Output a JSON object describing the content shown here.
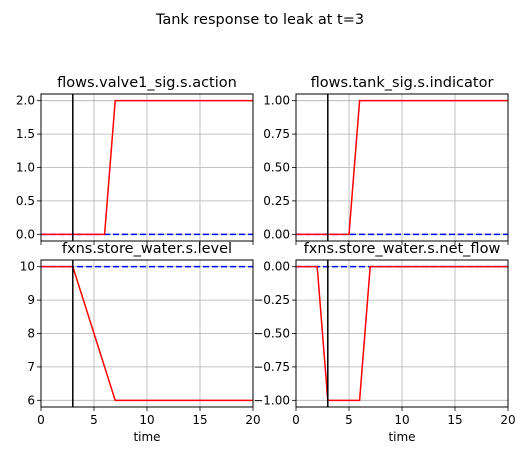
{
  "figure": {
    "suptitle": "Tank response to leak at t=3"
  },
  "colors": {
    "faulty": "#ff0000",
    "nominal": "#0000ff",
    "event": "#000000"
  },
  "chart_data": [
    {
      "type": "line",
      "title": "flows.valve1_sig.s.action",
      "xlabel": "",
      "xlim": [
        0,
        20
      ],
      "ylim": [
        -0.1,
        2.1
      ],
      "xticks": [
        0,
        5,
        10,
        15,
        20
      ],
      "yticks": [
        0.0,
        0.5,
        1.0,
        1.5,
        2.0
      ],
      "ytick_labels": [
        "0.0",
        "0.5",
        "1.0",
        "1.5",
        "2.0"
      ],
      "show_xtick_labels": false,
      "grid": true,
      "event_x": 3,
      "series": [
        {
          "style": "solid",
          "color": "#ff0000",
          "x": [
            0,
            6,
            7,
            20
          ],
          "y": [
            0,
            0,
            2,
            2
          ]
        },
        {
          "style": "dashed",
          "color": "#0000ff",
          "x": [
            0,
            20
          ],
          "y": [
            0,
            0
          ]
        }
      ]
    },
    {
      "type": "line",
      "title": "flows.tank_sig.s.indicator",
      "xlabel": "",
      "xlim": [
        0,
        20
      ],
      "ylim": [
        -0.05,
        1.05
      ],
      "xticks": [
        0,
        5,
        10,
        15,
        20
      ],
      "yticks": [
        0.0,
        0.25,
        0.5,
        0.75,
        1.0
      ],
      "ytick_labels": [
        "0.00",
        "0.25",
        "0.50",
        "0.75",
        "1.00"
      ],
      "show_xtick_labels": false,
      "grid": true,
      "event_x": 3,
      "series": [
        {
          "style": "solid",
          "color": "#ff0000",
          "x": [
            0,
            5,
            6,
            20
          ],
          "y": [
            0,
            0,
            1,
            1
          ]
        },
        {
          "style": "dashed",
          "color": "#0000ff",
          "x": [
            0,
            20
          ],
          "y": [
            0,
            0
          ]
        }
      ]
    },
    {
      "type": "line",
      "title": "fxns.store_water.s.level",
      "xlabel": "time",
      "xlim": [
        0,
        20
      ],
      "ylim": [
        5.8,
        10.2
      ],
      "xticks": [
        0,
        5,
        10,
        15,
        20
      ],
      "xtick_labels": [
        "0",
        "5",
        "10",
        "15",
        "20"
      ],
      "yticks": [
        6,
        7,
        8,
        9,
        10
      ],
      "ytick_labels": [
        "6",
        "7",
        "8",
        "9",
        "10"
      ],
      "show_xtick_labels": true,
      "grid": true,
      "event_x": 3,
      "series": [
        {
          "style": "solid",
          "color": "#ff0000",
          "x": [
            0,
            3,
            7,
            20
          ],
          "y": [
            10,
            10,
            6,
            6
          ]
        },
        {
          "style": "dashed",
          "color": "#0000ff",
          "x": [
            0,
            20
          ],
          "y": [
            10,
            10
          ]
        }
      ]
    },
    {
      "type": "line",
      "title": "fxns.store_water.s.net_flow",
      "xlabel": "time",
      "xlim": [
        0,
        20
      ],
      "ylim": [
        -1.05,
        0.05
      ],
      "xticks": [
        0,
        5,
        10,
        15,
        20
      ],
      "xtick_labels": [
        "0",
        "5",
        "10",
        "15",
        "20"
      ],
      "yticks": [
        0.0,
        -0.25,
        -0.5,
        -0.75,
        -1.0
      ],
      "ytick_labels": [
        "0.00",
        "−0.25",
        "−0.50",
        "−0.75",
        "−1.00"
      ],
      "show_xtick_labels": true,
      "grid": true,
      "event_x": 3,
      "series": [
        {
          "style": "solid",
          "color": "#ff0000",
          "x": [
            0,
            2,
            3,
            6,
            7,
            20
          ],
          "y": [
            0,
            0,
            -1,
            -1,
            0,
            0
          ]
        },
        {
          "style": "dashed",
          "color": "#0000ff",
          "x": [
            0,
            20
          ],
          "y": [
            0,
            0
          ]
        }
      ]
    }
  ]
}
